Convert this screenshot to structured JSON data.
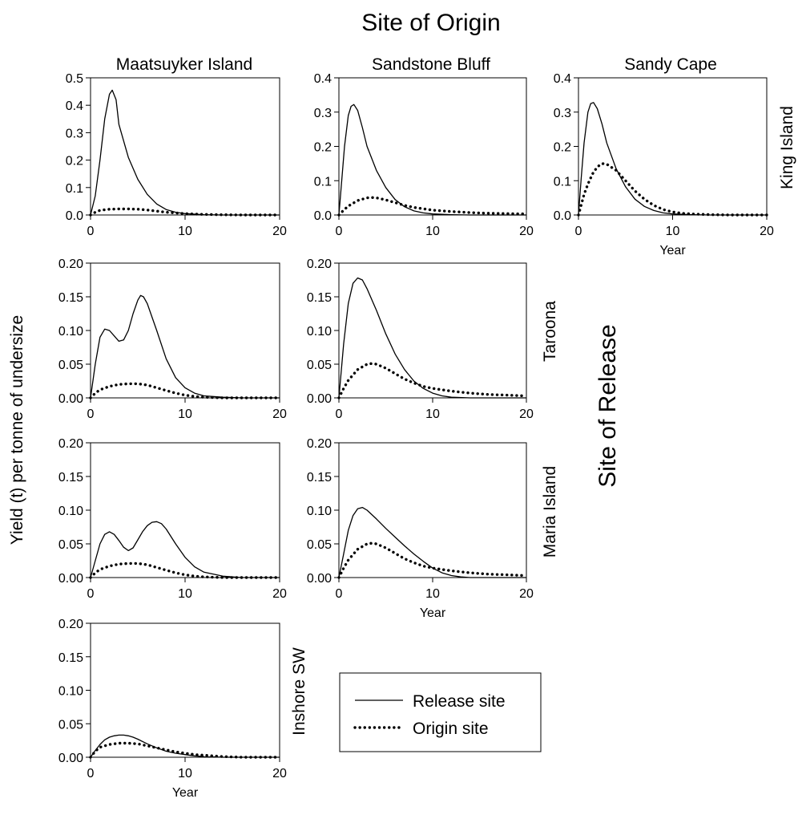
{
  "title": "Site of Origin",
  "row_group_label": "Site of Release",
  "y_axis_label": "Yield (t) per tonne of undersize",
  "column_labels": [
    "Maatsuyker Island",
    "Sandstone Bluff",
    "Sandy Cape"
  ],
  "row_labels": [
    "King Island",
    "Taroona",
    "Maria Island",
    "Inshore SW"
  ],
  "legend": {
    "release": "Release site",
    "origin": "Origin site"
  },
  "colors": {
    "line": "#000000",
    "background": "#ffffff"
  },
  "chart_data": [
    {
      "type": "line",
      "row": "King Island",
      "column": "Maatsuyker Island",
      "xlim": [
        0,
        20
      ],
      "ylim": [
        0,
        0.5
      ],
      "xticks": [
        0,
        10,
        20
      ],
      "yticks": [
        "0.0",
        "0.1",
        "0.2",
        "0.3",
        "0.4",
        "0.5"
      ],
      "xlabel": "",
      "series": [
        {
          "name": "Release site",
          "style": "solid",
          "x": [
            0,
            0.5,
            1,
            1.5,
            2,
            2.3,
            2.7,
            3,
            4,
            5,
            6,
            7,
            8,
            9,
            10,
            12,
            14,
            16,
            18,
            20
          ],
          "y": [
            0,
            0.07,
            0.2,
            0.35,
            0.44,
            0.455,
            0.42,
            0.33,
            0.21,
            0.13,
            0.075,
            0.04,
            0.02,
            0.01,
            0.005,
            0.001,
            0,
            0,
            0,
            0
          ]
        },
        {
          "name": "Origin site",
          "style": "dotted",
          "x": [
            0,
            0.5,
            1,
            2,
            3,
            4,
            5,
            6,
            7,
            8,
            10,
            12,
            14,
            16,
            18,
            20
          ],
          "y": [
            0,
            0.01,
            0.017,
            0.021,
            0.022,
            0.022,
            0.021,
            0.018,
            0.014,
            0.01,
            0.005,
            0.002,
            0.001,
            0,
            0,
            0
          ]
        }
      ]
    },
    {
      "type": "line",
      "row": "King Island",
      "column": "Sandstone Bluff",
      "xlim": [
        0,
        20
      ],
      "ylim": [
        0,
        0.4
      ],
      "xticks": [
        0,
        10,
        20
      ],
      "yticks": [
        "0.0",
        "0.1",
        "0.2",
        "0.3",
        "0.4"
      ],
      "xlabel": "",
      "series": [
        {
          "name": "Release site",
          "style": "solid",
          "x": [
            0,
            0.3,
            0.6,
            1,
            1.3,
            1.6,
            2,
            2.5,
            3,
            4,
            5,
            6,
            7,
            8,
            9,
            10,
            12,
            14,
            16,
            18,
            20
          ],
          "y": [
            0,
            0.1,
            0.2,
            0.29,
            0.317,
            0.322,
            0.305,
            0.255,
            0.2,
            0.13,
            0.08,
            0.045,
            0.024,
            0.012,
            0.006,
            0.003,
            0.001,
            0,
            0,
            0,
            0
          ]
        },
        {
          "name": "Origin site",
          "style": "dotted",
          "x": [
            0,
            0.5,
            1,
            2,
            3,
            3.5,
            4,
            5,
            6,
            7,
            8,
            10,
            12,
            14,
            16,
            18,
            20
          ],
          "y": [
            0,
            0.014,
            0.026,
            0.042,
            0.05,
            0.051,
            0.05,
            0.044,
            0.036,
            0.028,
            0.022,
            0.014,
            0.01,
            0.007,
            0.005,
            0.004,
            0.003
          ]
        }
      ]
    },
    {
      "type": "line",
      "row": "King Island",
      "column": "Sandy Cape",
      "xlim": [
        0,
        20
      ],
      "ylim": [
        0,
        0.4
      ],
      "xticks": [
        0,
        10,
        20
      ],
      "yticks": [
        "0.0",
        "0.1",
        "0.2",
        "0.3",
        "0.4"
      ],
      "xlabel": "Year",
      "series": [
        {
          "name": "Release site",
          "style": "solid",
          "x": [
            0,
            0.3,
            0.6,
            1,
            1.3,
            1.6,
            2,
            2.5,
            3,
            4,
            5,
            6,
            7,
            8,
            9,
            10,
            12,
            14,
            16,
            18,
            20
          ],
          "y": [
            0,
            0.11,
            0.21,
            0.3,
            0.325,
            0.328,
            0.31,
            0.265,
            0.21,
            0.135,
            0.082,
            0.046,
            0.025,
            0.013,
            0.006,
            0.003,
            0.001,
            0,
            0,
            0,
            0
          ]
        },
        {
          "name": "Origin site",
          "style": "dotted",
          "x": [
            0,
            0.3,
            0.6,
            1,
            1.5,
            2,
            2.5,
            3,
            4,
            5,
            6,
            7,
            8,
            9,
            10,
            11,
            12,
            14,
            16,
            18,
            20
          ],
          "y": [
            0,
            0.03,
            0.06,
            0.09,
            0.12,
            0.14,
            0.15,
            0.148,
            0.13,
            0.1,
            0.07,
            0.046,
            0.028,
            0.016,
            0.009,
            0.005,
            0.003,
            0.001,
            0,
            0,
            0
          ]
        }
      ]
    },
    {
      "type": "line",
      "row": "Taroona",
      "column": "Maatsuyker Island",
      "xlim": [
        0,
        20
      ],
      "ylim": [
        0,
        0.2
      ],
      "xticks": [
        0,
        10,
        20
      ],
      "yticks": [
        "0.00",
        "0.05",
        "0.10",
        "0.15",
        "0.20"
      ],
      "xlabel": "",
      "series": [
        {
          "name": "Release site",
          "style": "solid",
          "x": [
            0,
            0.5,
            1,
            1.5,
            2,
            2.5,
            3,
            3.5,
            4,
            4.5,
            5,
            5.3,
            5.6,
            6,
            7,
            8,
            9,
            10,
            11,
            12,
            14,
            16,
            18,
            20
          ],
          "y": [
            0,
            0.05,
            0.09,
            0.102,
            0.1,
            0.092,
            0.084,
            0.086,
            0.1,
            0.125,
            0.145,
            0.152,
            0.15,
            0.14,
            0.1,
            0.058,
            0.03,
            0.015,
            0.007,
            0.003,
            0.001,
            0,
            0,
            0
          ]
        },
        {
          "name": "Origin site",
          "style": "dotted",
          "x": [
            0,
            0.5,
            1,
            2,
            3,
            4,
            5,
            6,
            7,
            8,
            9,
            10,
            11,
            12,
            14,
            16,
            18,
            20
          ],
          "y": [
            0,
            0.007,
            0.012,
            0.017,
            0.02,
            0.021,
            0.021,
            0.019,
            0.015,
            0.011,
            0.007,
            0.004,
            0.002,
            0.001,
            0,
            0,
            0,
            0
          ]
        }
      ]
    },
    {
      "type": "line",
      "row": "Taroona",
      "column": "Sandstone Bluff",
      "xlim": [
        0,
        20
      ],
      "ylim": [
        0,
        0.2
      ],
      "xticks": [
        0,
        10,
        20
      ],
      "yticks": [
        "0.00",
        "0.05",
        "0.10",
        "0.15",
        "0.20"
      ],
      "xlabel": "",
      "series": [
        {
          "name": "Release site",
          "style": "solid",
          "x": [
            0,
            0.5,
            1,
            1.5,
            2,
            2.5,
            3,
            4,
            5,
            6,
            7,
            8,
            9,
            10,
            11,
            12,
            14,
            16,
            18,
            20
          ],
          "y": [
            0,
            0.08,
            0.14,
            0.17,
            0.178,
            0.175,
            0.162,
            0.13,
            0.095,
            0.065,
            0.042,
            0.025,
            0.014,
            0.007,
            0.003,
            0.001,
            0,
            0,
            0,
            0
          ]
        },
        {
          "name": "Origin site",
          "style": "dotted",
          "x": [
            0,
            0.5,
            1,
            2,
            3,
            3.5,
            4,
            5,
            6,
            7,
            8,
            9,
            10,
            12,
            14,
            16,
            18,
            20
          ],
          "y": [
            0,
            0.014,
            0.026,
            0.042,
            0.05,
            0.051,
            0.05,
            0.044,
            0.036,
            0.028,
            0.022,
            0.017,
            0.014,
            0.01,
            0.007,
            0.005,
            0.004,
            0.003
          ]
        }
      ]
    },
    {
      "type": "line",
      "row": "Maria Island",
      "column": "Maatsuyker Island",
      "xlim": [
        0,
        20
      ],
      "ylim": [
        0,
        0.2
      ],
      "xticks": [
        0,
        10,
        20
      ],
      "yticks": [
        "0.00",
        "0.05",
        "0.10",
        "0.15",
        "0.20"
      ],
      "xlabel": "",
      "series": [
        {
          "name": "Release site",
          "style": "solid",
          "x": [
            0,
            0.5,
            1,
            1.5,
            2,
            2.5,
            3,
            3.5,
            4,
            4.5,
            5,
            5.5,
            6,
            6.5,
            7,
            7.5,
            8,
            9,
            10,
            11,
            12,
            14,
            16,
            18,
            20
          ],
          "y": [
            0,
            0.025,
            0.05,
            0.064,
            0.068,
            0.064,
            0.055,
            0.045,
            0.04,
            0.044,
            0.056,
            0.068,
            0.077,
            0.082,
            0.083,
            0.08,
            0.072,
            0.05,
            0.03,
            0.016,
            0.008,
            0.002,
            0,
            0,
            0
          ]
        },
        {
          "name": "Origin site",
          "style": "dotted",
          "x": [
            0,
            0.5,
            1,
            2,
            3,
            4,
            5,
            6,
            7,
            8,
            9,
            10,
            11,
            12,
            14,
            16,
            18,
            20
          ],
          "y": [
            0,
            0.007,
            0.012,
            0.017,
            0.02,
            0.021,
            0.021,
            0.019,
            0.015,
            0.011,
            0.007,
            0.004,
            0.002,
            0.001,
            0,
            0,
            0,
            0
          ]
        }
      ]
    },
    {
      "type": "line",
      "row": "Maria Island",
      "column": "Sandstone Bluff",
      "xlim": [
        0,
        20
      ],
      "ylim": [
        0,
        0.2
      ],
      "xticks": [
        0,
        10,
        20
      ],
      "yticks": [
        "0.00",
        "0.05",
        "0.10",
        "0.15",
        "0.20"
      ],
      "xlabel": "Year",
      "series": [
        {
          "name": "Release site",
          "style": "solid",
          "x": [
            0,
            0.5,
            1,
            1.5,
            2,
            2.5,
            3,
            4,
            5,
            6,
            7,
            8,
            9,
            10,
            11,
            12,
            13,
            14,
            16,
            18,
            20
          ],
          "y": [
            0,
            0.035,
            0.07,
            0.092,
            0.102,
            0.104,
            0.1,
            0.087,
            0.073,
            0.06,
            0.047,
            0.035,
            0.024,
            0.014,
            0.007,
            0.003,
            0.001,
            0,
            0,
            0,
            0
          ]
        },
        {
          "name": "Origin site",
          "style": "dotted",
          "x": [
            0,
            0.5,
            1,
            2,
            3,
            3.5,
            4,
            5,
            6,
            7,
            8,
            9,
            10,
            12,
            14,
            16,
            18,
            20
          ],
          "y": [
            0,
            0.014,
            0.026,
            0.042,
            0.05,
            0.051,
            0.05,
            0.044,
            0.036,
            0.028,
            0.022,
            0.017,
            0.014,
            0.01,
            0.007,
            0.005,
            0.004,
            0.003
          ]
        }
      ]
    },
    {
      "type": "line",
      "row": "Inshore SW",
      "column": "Maatsuyker Island",
      "xlim": [
        0,
        20
      ],
      "ylim": [
        0,
        0.2
      ],
      "xticks": [
        0,
        10,
        20
      ],
      "yticks": [
        "0.00",
        "0.05",
        "0.10",
        "0.15",
        "0.20"
      ],
      "xlabel": "Year",
      "series": [
        {
          "name": "Release site",
          "style": "solid",
          "x": [
            0,
            0.5,
            1,
            1.5,
            2,
            2.5,
            3,
            3.5,
            4,
            4.5,
            5,
            6,
            7,
            8,
            9,
            10,
            11,
            12,
            14,
            16,
            18,
            20
          ],
          "y": [
            0,
            0.01,
            0.019,
            0.026,
            0.03,
            0.032,
            0.033,
            0.033,
            0.032,
            0.03,
            0.027,
            0.02,
            0.014,
            0.009,
            0.006,
            0.004,
            0.002,
            0.001,
            0,
            0,
            0,
            0
          ]
        },
        {
          "name": "Origin site",
          "style": "dotted",
          "x": [
            0,
            0.5,
            1,
            2,
            3,
            4,
            5,
            6,
            7,
            8,
            9,
            10,
            11,
            12,
            14,
            16,
            18,
            20
          ],
          "y": [
            0,
            0.009,
            0.015,
            0.019,
            0.021,
            0.021,
            0.02,
            0.017,
            0.014,
            0.011,
            0.008,
            0.006,
            0.004,
            0.003,
            0.001,
            0,
            0,
            0
          ]
        }
      ]
    }
  ]
}
